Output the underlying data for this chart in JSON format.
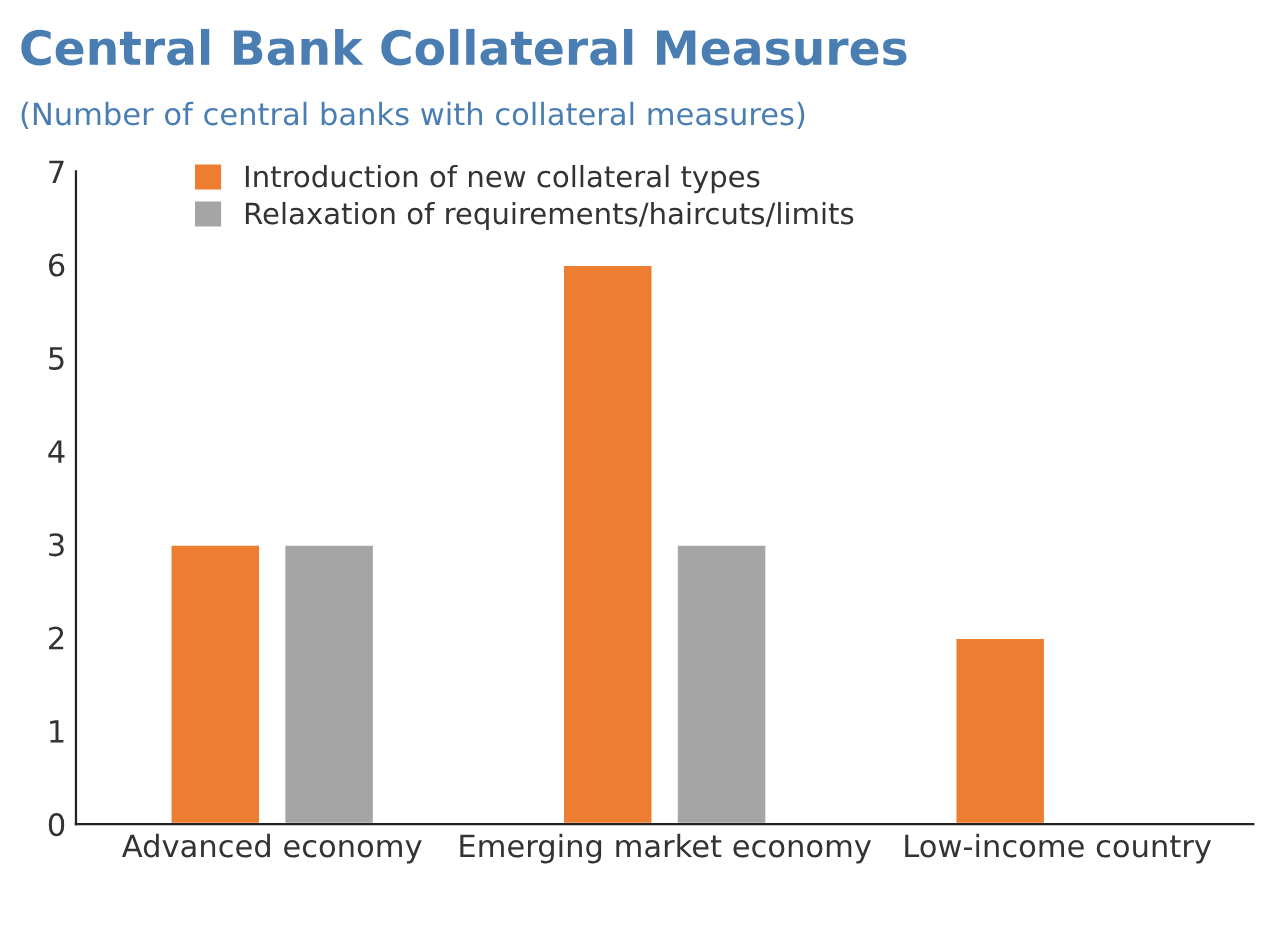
{
  "chart_data": {
    "type": "bar",
    "title": "Central Bank Collateral Measures",
    "subtitle": "(Number of central banks with collateral measures)",
    "categories": [
      "Advanced economy",
      "Emerging market economy",
      "Low-income country"
    ],
    "series": [
      {
        "name": "Introduction of new collateral types",
        "color": "#ed7d31",
        "values": [
          3,
          6,
          2
        ]
      },
      {
        "name": "Relaxation of requirements/haircuts/limits",
        "color": "#a5a5a5",
        "values": [
          3,
          3,
          null
        ]
      }
    ],
    "ylim": [
      0,
      7
    ],
    "yticks": [
      0,
      1,
      2,
      3,
      4,
      5,
      6,
      7
    ],
    "grid": false,
    "legend": "top left"
  }
}
